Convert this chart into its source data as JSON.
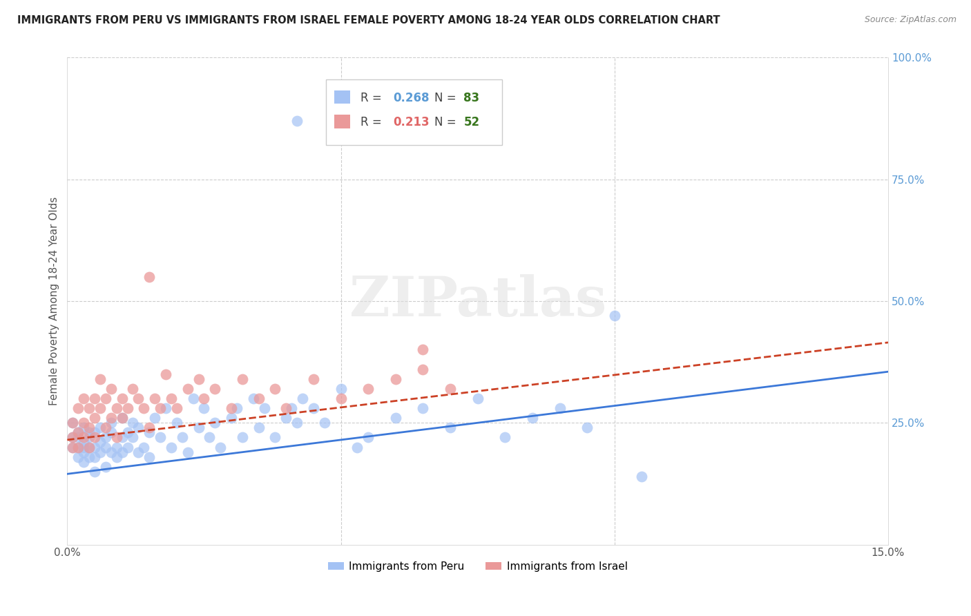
{
  "title": "IMMIGRANTS FROM PERU VS IMMIGRANTS FROM ISRAEL FEMALE POVERTY AMONG 18-24 YEAR OLDS CORRELATION CHART",
  "source": "Source: ZipAtlas.com",
  "ylabel": "Female Poverty Among 18-24 Year Olds",
  "x_min": 0.0,
  "x_max": 0.15,
  "y_min": 0.0,
  "y_max": 1.0,
  "color_peru": "#a4c2f4",
  "color_israel": "#ea9999",
  "color_peru_line": "#3c78d8",
  "color_israel_line": "#cc4125",
  "R_peru": 0.268,
  "N_peru": 83,
  "R_israel": 0.213,
  "N_israel": 52,
  "watermark": "ZIPatlas",
  "peru_x": [
    0.001,
    0.001,
    0.001,
    0.002,
    0.002,
    0.002,
    0.002,
    0.003,
    0.003,
    0.003,
    0.003,
    0.003,
    0.004,
    0.004,
    0.004,
    0.004,
    0.005,
    0.005,
    0.005,
    0.005,
    0.006,
    0.006,
    0.006,
    0.007,
    0.007,
    0.007,
    0.008,
    0.008,
    0.008,
    0.009,
    0.009,
    0.01,
    0.01,
    0.01,
    0.011,
    0.011,
    0.012,
    0.012,
    0.013,
    0.013,
    0.014,
    0.015,
    0.015,
    0.016,
    0.017,
    0.018,
    0.019,
    0.02,
    0.021,
    0.022,
    0.023,
    0.024,
    0.025,
    0.026,
    0.027,
    0.028,
    0.03,
    0.031,
    0.032,
    0.034,
    0.035,
    0.036,
    0.038,
    0.04,
    0.041,
    0.042,
    0.043,
    0.045,
    0.047,
    0.05,
    0.053,
    0.055,
    0.06,
    0.065,
    0.07,
    0.075,
    0.08,
    0.085,
    0.09,
    0.095,
    0.042,
    0.1,
    0.105
  ],
  "peru_y": [
    0.22,
    0.2,
    0.25,
    0.18,
    0.22,
    0.2,
    0.23,
    0.19,
    0.21,
    0.24,
    0.2,
    0.17,
    0.23,
    0.2,
    0.18,
    0.22,
    0.15,
    0.2,
    0.23,
    0.18,
    0.21,
    0.24,
    0.19,
    0.22,
    0.2,
    0.16,
    0.23,
    0.19,
    0.25,
    0.2,
    0.18,
    0.22,
    0.26,
    0.19,
    0.23,
    0.2,
    0.25,
    0.22,
    0.19,
    0.24,
    0.2,
    0.23,
    0.18,
    0.26,
    0.22,
    0.28,
    0.2,
    0.25,
    0.22,
    0.19,
    0.3,
    0.24,
    0.28,
    0.22,
    0.25,
    0.2,
    0.26,
    0.28,
    0.22,
    0.3,
    0.24,
    0.28,
    0.22,
    0.26,
    0.28,
    0.25,
    0.3,
    0.28,
    0.25,
    0.32,
    0.2,
    0.22,
    0.26,
    0.28,
    0.24,
    0.3,
    0.22,
    0.26,
    0.28,
    0.24,
    0.87,
    0.47,
    0.14
  ],
  "israel_x": [
    0.001,
    0.001,
    0.001,
    0.002,
    0.002,
    0.002,
    0.003,
    0.003,
    0.003,
    0.004,
    0.004,
    0.004,
    0.005,
    0.005,
    0.005,
    0.006,
    0.006,
    0.007,
    0.007,
    0.008,
    0.008,
    0.009,
    0.009,
    0.01,
    0.01,
    0.011,
    0.012,
    0.013,
    0.014,
    0.015,
    0.016,
    0.017,
    0.018,
    0.019,
    0.02,
    0.022,
    0.024,
    0.025,
    0.027,
    0.03,
    0.032,
    0.035,
    0.038,
    0.04,
    0.045,
    0.05,
    0.055,
    0.06,
    0.065,
    0.07,
    0.015,
    0.065
  ],
  "israel_y": [
    0.22,
    0.25,
    0.2,
    0.23,
    0.28,
    0.2,
    0.25,
    0.22,
    0.3,
    0.24,
    0.2,
    0.28,
    0.26,
    0.22,
    0.3,
    0.28,
    0.34,
    0.24,
    0.3,
    0.26,
    0.32,
    0.28,
    0.22,
    0.26,
    0.3,
    0.28,
    0.32,
    0.3,
    0.28,
    0.24,
    0.3,
    0.28,
    0.35,
    0.3,
    0.28,
    0.32,
    0.34,
    0.3,
    0.32,
    0.28,
    0.34,
    0.3,
    0.32,
    0.28,
    0.34,
    0.3,
    0.32,
    0.34,
    0.36,
    0.32,
    0.55,
    0.4
  ],
  "peru_line_x": [
    0.0,
    0.15
  ],
  "peru_line_y": [
    0.145,
    0.355
  ],
  "israel_line_x": [
    0.0,
    0.15
  ],
  "israel_line_y": [
    0.215,
    0.415
  ]
}
